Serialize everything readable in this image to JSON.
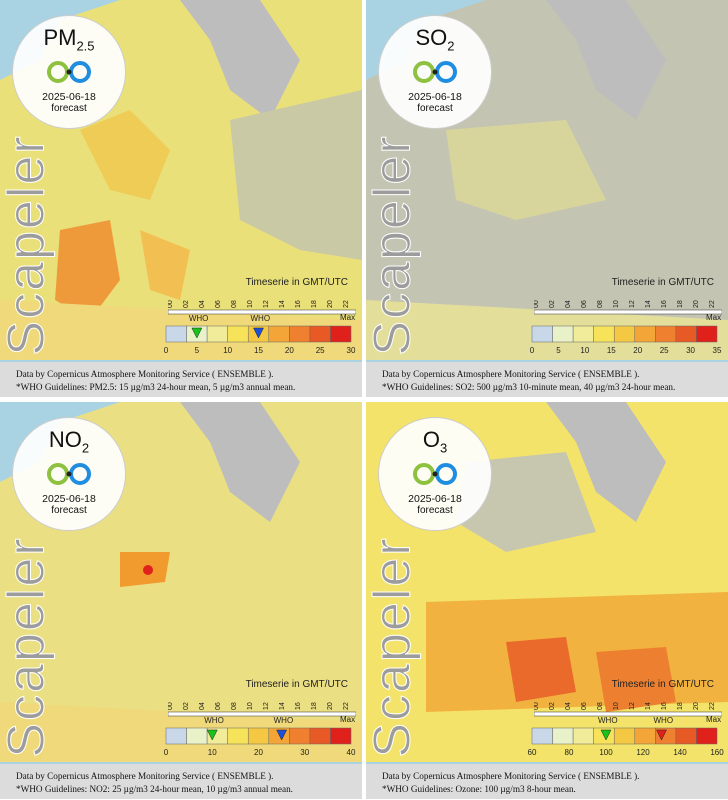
{
  "brand": "Scapeler",
  "timeline_label": "Timeserie in GMT/UTC",
  "max_label": "Max",
  "who_label": "WHO",
  "hours": [
    "00",
    "02",
    "04",
    "06",
    "08",
    "10",
    "12",
    "14",
    "16",
    "18",
    "20",
    "22"
  ],
  "colors": {
    "sea": "#a9d3e3",
    "land": "#bdbdbd",
    "low": "#f0ecb0",
    "mid": "#f7e35a",
    "high": "#f19b2e",
    "extreme": "#e0211b"
  },
  "panels": [
    {
      "pollutant": "PM",
      "subscript": "2.5",
      "date": "2025-06-18",
      "forecast": "forecast",
      "ticks": [
        "0",
        "5",
        "10",
        "15",
        "20",
        "25",
        "30"
      ],
      "who_markers": [
        {
          "label": "WHO",
          "value": 5,
          "color": "#19c319"
        },
        {
          "label": "WHO",
          "value": 15,
          "color": "#1e4fd8"
        }
      ],
      "scale_max": 30,
      "caption1": "Data by Copernicus Atmosphere Monitoring Service ( ENSEMBLE ).",
      "caption2": "*WHO Guidelines: PM2.5: 15 µg/m3 24-hour mean, 5 µg/m3 annual mean."
    },
    {
      "pollutant": "SO",
      "subscript": "2",
      "date": "2025-06-18",
      "forecast": "forecast",
      "ticks": [
        "0",
        "5",
        "10",
        "15",
        "20",
        "25",
        "30",
        "35"
      ],
      "who_markers": [],
      "scale_max": 35,
      "caption1": "Data by Copernicus Atmosphere Monitoring Service ( ENSEMBLE ).",
      "caption2": "*WHO Guidelines: SO2: 500 µg/m3 10-minute mean, 40 µg/m3 24-hour mean."
    },
    {
      "pollutant": "NO",
      "subscript": "2",
      "date": "2025-06-18",
      "forecast": "forecast",
      "ticks": [
        "0",
        "10",
        "20",
        "30",
        "40"
      ],
      "who_markers": [
        {
          "label": "WHO",
          "value": 10,
          "color": "#19c319"
        },
        {
          "label": "WHO",
          "value": 25,
          "color": "#1e4fd8"
        }
      ],
      "scale_max": 40,
      "caption1": "Data by Copernicus Atmosphere Monitoring Service ( ENSEMBLE ).",
      "caption2": "*WHO Guidelines: NO2: 25 µg/m3 24-hour mean, 10 µg/m3 annual mean."
    },
    {
      "pollutant": "O",
      "subscript": "3",
      "date": "2025-06-18",
      "forecast": "forecast",
      "ticks": [
        "60",
        "80",
        "100",
        "120",
        "140",
        "160"
      ],
      "who_markers": [
        {
          "label": "WHO",
          "value": 100,
          "color": "#19c319"
        },
        {
          "label": "WHO",
          "value": 130,
          "color": "#e0211b"
        }
      ],
      "scale_max": 160,
      "caption1": "Data by Copernicus Atmosphere Monitoring Service ( ENSEMBLE ).",
      "caption2": "*WHO Guidelines: Ozone: 100 µg/m3 8-hour mean."
    }
  ]
}
